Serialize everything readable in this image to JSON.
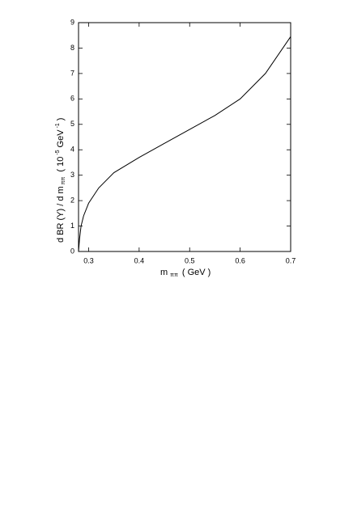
{
  "chart_data": {
    "type": "line",
    "x_label": {
      "main": "m",
      "sub": "ππ",
      "unit": "( GeV )"
    },
    "y_label": {
      "main": "d BR (Υ) / d m",
      "sub": "ππ",
      "open": "( 10",
      "sup1": "-5",
      "unit": "GeV",
      "sup2": "-1",
      "close": ")"
    },
    "x": [
      0.28,
      0.282,
      0.285,
      0.29,
      0.3,
      0.32,
      0.35,
      0.4,
      0.45,
      0.5,
      0.55,
      0.6,
      0.65,
      0.7
    ],
    "values": [
      0,
      0.5,
      1.0,
      1.4,
      1.9,
      2.5,
      3.1,
      3.7,
      4.25,
      4.8,
      5.35,
      6.0,
      7.0,
      8.45
    ],
    "color": "#000000",
    "xlim": [
      0.28,
      0.7
    ],
    "ylim": [
      0,
      9
    ],
    "xticks": [
      0.3,
      0.4,
      0.5,
      0.6,
      0.7
    ],
    "yticks": [
      0,
      1,
      2,
      3,
      4,
      5,
      6,
      7,
      8,
      9
    ]
  }
}
